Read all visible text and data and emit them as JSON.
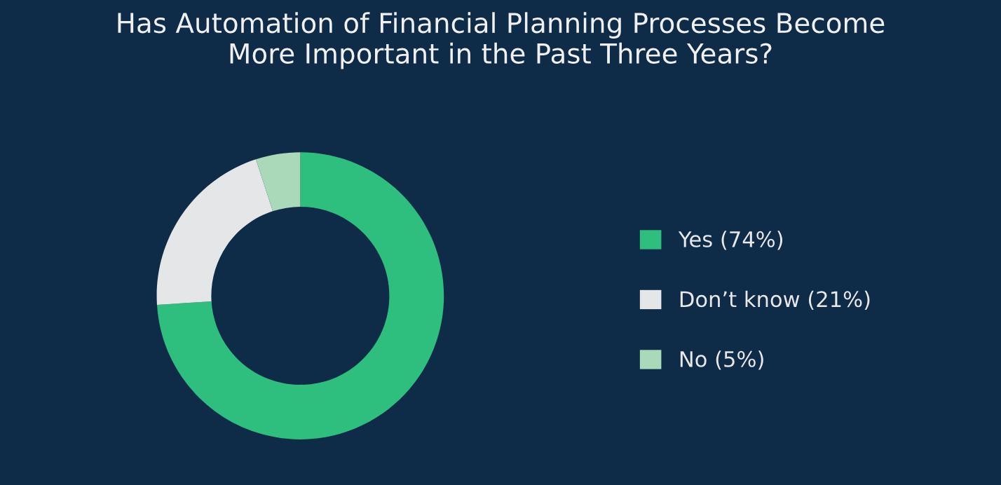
{
  "chart_data": {
    "type": "donut",
    "title": "Has Automation of Financial Planning Processes Become\nMore Important in the Past Three Years?",
    "categories": [
      "Yes (74%)",
      "Don’t know (21%)",
      "No (5%)"
    ],
    "values": [
      74,
      21,
      5
    ],
    "colors": [
      "#2ebf7e",
      "#e4e6e8",
      "#a9d9b8"
    ],
    "legend": "right"
  }
}
